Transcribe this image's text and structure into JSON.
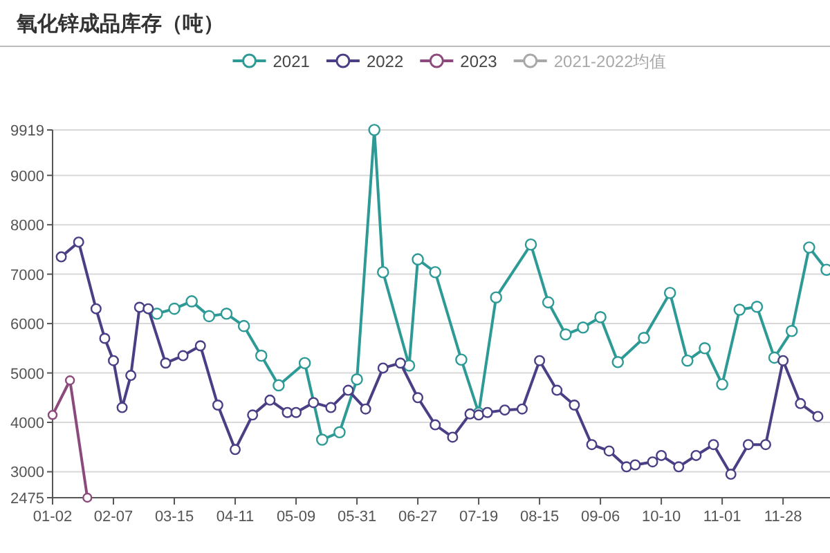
{
  "chart_data": {
    "type": "line",
    "title": "氧化锌成品库存（吨）",
    "categories": [
      "01-02",
      null,
      null,
      null,
      null,
      null,
      null,
      "02-07",
      null,
      null,
      null,
      null,
      null,
      null,
      "03-15",
      null,
      null,
      null,
      null,
      null,
      null,
      "04-11",
      null,
      null,
      null,
      null,
      null,
      null,
      "05-09",
      null,
      null,
      null,
      null,
      null,
      null,
      "05-31",
      null,
      null,
      null,
      null,
      null,
      null,
      "06-27",
      null,
      null,
      null,
      null,
      null,
      null,
      "07-19",
      null,
      null,
      null,
      null,
      null,
      null,
      "08-15",
      null,
      null,
      null,
      null,
      null,
      null,
      "09-06",
      null,
      null,
      null,
      null,
      null,
      null,
      "10-10",
      null,
      null,
      null,
      null,
      null,
      null,
      "11-01",
      null,
      null,
      null,
      null,
      null,
      null,
      "11-28",
      null,
      null,
      null,
      null,
      null
    ],
    "series": [
      {
        "name": "2021",
        "color": "#2e9a96",
        "values": [
          null,
          null,
          null,
          null,
          null,
          null,
          null,
          null,
          null,
          null,
          null,
          null,
          6200,
          null,
          6300,
          null,
          6450,
          null,
          6150,
          null,
          6200,
          null,
          5950,
          null,
          5350,
          null,
          4750,
          null,
          null,
          5200,
          null,
          3650,
          null,
          3800,
          null,
          4870,
          null,
          9919,
          7040,
          null,
          null,
          5150,
          7300,
          null,
          7040,
          null,
          null,
          5270,
          null,
          4190,
          null,
          6530,
          null,
          null,
          null,
          7600,
          null,
          6430,
          null,
          5780,
          null,
          5920,
          null,
          6130,
          null,
          5220,
          null,
          null,
          5710,
          null,
          null,
          6620,
          null,
          5250,
          null,
          5500,
          null,
          4770,
          null,
          6280,
          null,
          6340,
          null,
          5310,
          null,
          5850,
          null,
          7540,
          null,
          7090
        ]
      },
      {
        "name": "2022",
        "color": "#4a3f85",
        "values": [
          null,
          7350,
          null,
          7650,
          null,
          6300,
          5700,
          5250,
          4300,
          4950,
          6330,
          6300,
          null,
          5200,
          null,
          5350,
          null,
          5550,
          null,
          4350,
          null,
          3450,
          null,
          4150,
          null,
          4450,
          null,
          4200,
          4200,
          null,
          4400,
          null,
          4300,
          null,
          4650,
          null,
          4270,
          null,
          5100,
          null,
          5200,
          null,
          4500,
          null,
          3950,
          null,
          3700,
          null,
          4170,
          4150,
          4200,
          null,
          4250,
          null,
          4270,
          null,
          5250,
          null,
          4650,
          null,
          4350,
          null,
          3550,
          null,
          3420,
          null,
          3100,
          3140,
          null,
          3200,
          3330,
          null,
          3100,
          null,
          3330,
          null,
          3550,
          null,
          2950,
          null,
          3550,
          null,
          3550,
          null,
          5250,
          null,
          4380,
          null,
          4120,
          null
        ]
      },
      {
        "name": "2023",
        "color": "#8c4a7c",
        "values": [
          4150,
          null,
          4850,
          null,
          2475,
          null,
          null,
          null,
          null,
          null,
          null,
          null,
          null,
          null,
          null,
          null,
          null,
          null,
          null,
          null,
          null,
          null,
          null,
          null,
          null,
          null,
          null,
          null,
          null,
          null,
          null,
          null,
          null,
          null,
          null,
          null,
          null,
          null,
          null,
          null,
          null,
          null,
          null,
          null,
          null,
          null,
          null,
          null,
          null,
          null,
          null,
          null,
          null,
          null,
          null,
          null,
          null,
          null,
          null,
          null,
          null,
          null,
          null,
          null,
          null,
          null,
          null,
          null,
          null,
          null,
          null,
          null,
          null,
          null,
          null,
          null,
          null,
          null,
          null,
          null,
          null,
          null,
          null,
          null,
          null,
          null,
          null,
          null,
          null,
          null
        ]
      },
      {
        "name": "2021-2022均值",
        "color": "#a8a8a8",
        "values": [
          null,
          null,
          null,
          null,
          null,
          null,
          null,
          null,
          null,
          null,
          null,
          null,
          null,
          null,
          null,
          null,
          null,
          null,
          null,
          null,
          null,
          null,
          null,
          null,
          null,
          null,
          null,
          null,
          null,
          null,
          null,
          null,
          null,
          null,
          null,
          null,
          null,
          null,
          null,
          null,
          null,
          null,
          null,
          null,
          null,
          null,
          null,
          null,
          null,
          null,
          null,
          null,
          null,
          null,
          null,
          null,
          null,
          null,
          null,
          null,
          null,
          null,
          null,
          null,
          null,
          null,
          null,
          null,
          null,
          null,
          null,
          null,
          null,
          null,
          null,
          null,
          null,
          null,
          null,
          null,
          null,
          null,
          null,
          null,
          null,
          null,
          null,
          null,
          null,
          null
        ]
      }
    ],
    "ylim": [
      2475,
      9919
    ],
    "yticks": [
      2475,
      3000,
      4000,
      5000,
      6000,
      7000,
      8000,
      9000,
      9919
    ],
    "grid": "y",
    "legend": "top",
    "marker": "circle"
  }
}
